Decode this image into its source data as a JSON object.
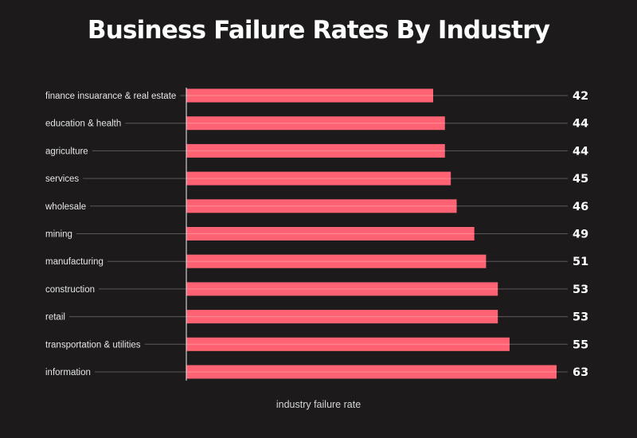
{
  "chart_data": {
    "type": "bar",
    "orientation": "horizontal",
    "title": "Business Failure Rates By Industry",
    "xlabel": "industry failure rate",
    "ylabel": "",
    "categories": [
      "finance insuarance & real estate",
      "education & health",
      "agriculture",
      "services",
      "wholesale",
      "mining",
      "manufacturing",
      "construction",
      "retail",
      "transportation & utilities",
      "information"
    ],
    "values": [
      42,
      44,
      44,
      45,
      46,
      49,
      51,
      53,
      53,
      55,
      63
    ],
    "value_labels": [
      "42",
      "44",
      "44",
      "45",
      "46",
      "49",
      "51",
      "53",
      "53",
      "55",
      "63"
    ],
    "xlim": [
      0,
      63
    ],
    "grid": true,
    "legend": "none",
    "colors": {
      "bar": "#ff6273",
      "background": "#1c1a1b",
      "gridline": "#5a5859",
      "axis": "#cfcfcf",
      "text": "#ffffff"
    }
  }
}
